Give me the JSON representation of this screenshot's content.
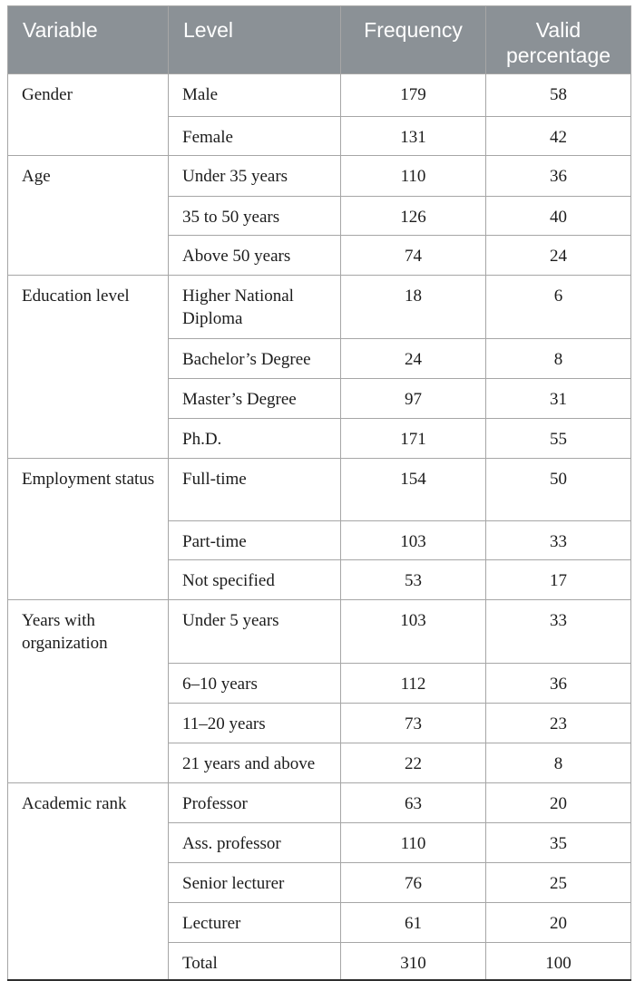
{
  "table": {
    "columns": [
      "Variable",
      "Level",
      "Frequency",
      "Valid percentage"
    ],
    "groups": [
      {
        "variable": "Gender",
        "rows": [
          [
            "Male",
            "179",
            "58"
          ],
          [
            "Female",
            "131",
            "42"
          ]
        ]
      },
      {
        "variable": "Age",
        "rows": [
          [
            "Under 35 years",
            "110",
            "36"
          ],
          [
            "35 to 50 years",
            "126",
            "40"
          ],
          [
            "Above 50 years",
            "74",
            "24"
          ]
        ]
      },
      {
        "variable": "Education level",
        "rows": [
          [
            "Higher National Diploma",
            "18",
            "6"
          ],
          [
            "Bachelor’s Degree",
            "24",
            "8"
          ],
          [
            "Master’s Degree",
            "97",
            "31"
          ],
          [
            "Ph.D.",
            "171",
            "55"
          ]
        ]
      },
      {
        "variable": "Employment status",
        "rows": [
          [
            "Full-time",
            "154",
            "50"
          ],
          [
            "Part-time",
            "103",
            "33"
          ],
          [
            "Not specified",
            "53",
            "17"
          ]
        ]
      },
      {
        "variable": "Years with organization",
        "rows": [
          [
            "Under 5 years",
            "103",
            "33"
          ],
          [
            "6–10 years",
            "112",
            "36"
          ],
          [
            "11–20 years",
            "73",
            "23"
          ],
          [
            "21 years and above",
            "22",
            "8"
          ]
        ]
      },
      {
        "variable": "Academic rank",
        "rows": [
          [
            "Professor",
            "63",
            "20"
          ],
          [
            "Ass. professor",
            "110",
            "35"
          ],
          [
            "Senior lecturer",
            "76",
            "25"
          ],
          [
            "Lecturer",
            "61",
            "20"
          ],
          [
            "Total",
            "310",
            "100"
          ]
        ]
      }
    ],
    "colors": {
      "header_bg": "#8b9196",
      "header_text": "#ffffff",
      "grid_border": "#a6a6a6",
      "bottom_border": "#2e2e2e",
      "body_text": "#1c1c1c"
    }
  }
}
